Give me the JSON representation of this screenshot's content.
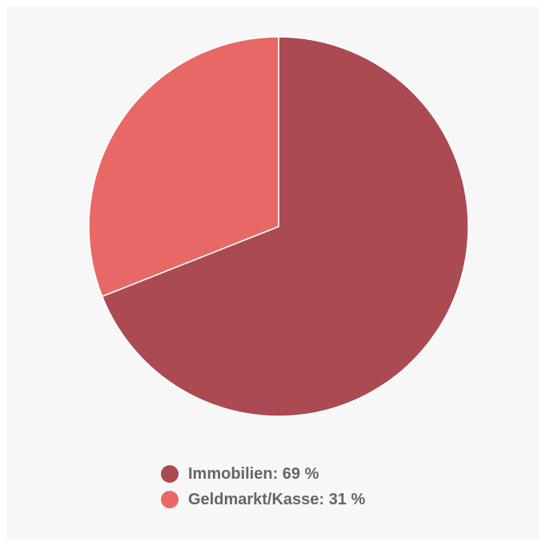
{
  "chart_data": {
    "type": "pie",
    "slices": [
      {
        "label": "Immobilien",
        "value": 69,
        "color": "#ab4a53",
        "legend": "Immobilien: 69 %"
      },
      {
        "label": "Geldmarkt/Kasse",
        "value": 31,
        "color": "#e86866",
        "legend": "Geldmarkt/Kasse: 31 %"
      }
    ],
    "legend_position": "bottom-center",
    "background": "#f7f7f7"
  }
}
